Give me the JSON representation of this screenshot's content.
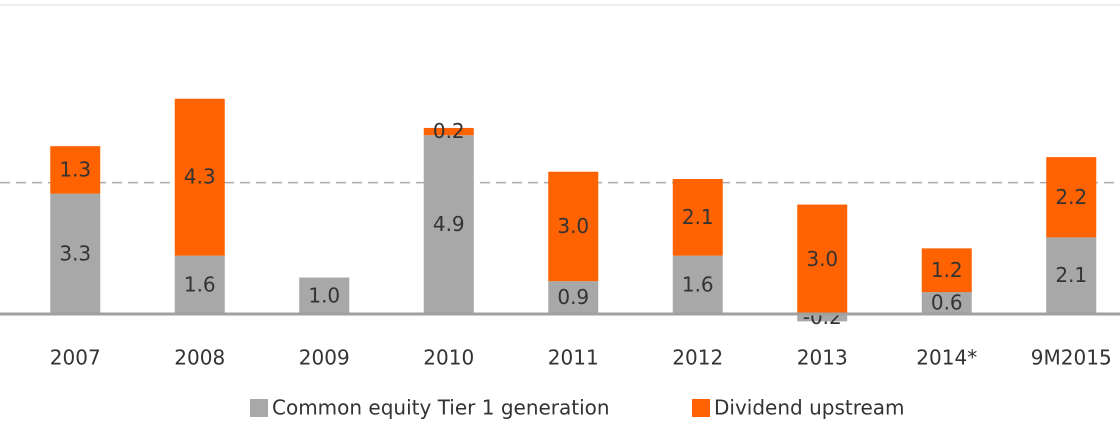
{
  "chart_data": {
    "type": "stacked_bar",
    "categories": [
      "2007",
      "2008",
      "2009",
      "2010",
      "2011",
      "2012",
      "2013",
      "2014*",
      "9M2015"
    ],
    "series": [
      {
        "name": "Common equity Tier 1 generation",
        "color": "#a8a8a8",
        "values": [
          3.3,
          1.6,
          1.0,
          4.9,
          0.9,
          1.6,
          -0.2,
          0.6,
          2.1
        ],
        "value_labels": [
          "3.3",
          "1.6",
          "1.0",
          "4.9",
          "0.9",
          "1.6",
          "-0.2",
          "0.6",
          "2.1"
        ]
      },
      {
        "name": "Dividend upstream",
        "color": "#ff6200",
        "values": [
          1.3,
          4.3,
          null,
          0.2,
          3.0,
          2.1,
          3.0,
          1.2,
          2.2
        ],
        "value_labels": [
          "1.3",
          "4.3",
          null,
          "0.2",
          "3.0",
          "2.1",
          "3.0",
          "1.2",
          "2.2"
        ]
      }
    ],
    "ylim": [
      -0.3,
      8.4
    ],
    "reference_line": 3.6,
    "legend": "bottom"
  }
}
